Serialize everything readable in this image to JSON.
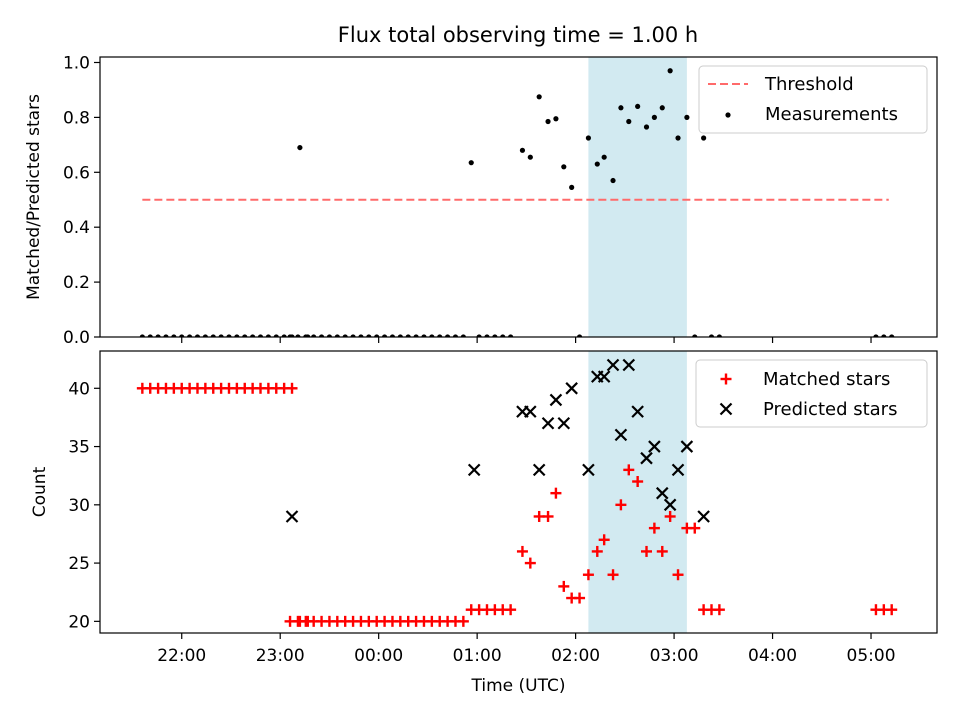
{
  "figure": {
    "title": "Flux total observing time = 1.00 h"
  },
  "chart_data": [
    {
      "type": "scatter",
      "title": "Flux total observing time = 1.00 h",
      "ylabel": "Matched/Predicted stars",
      "xlabel": "",
      "x_unit": "hours relative to 00:00 UTC",
      "xlim": [
        -2.83,
        5.67
      ],
      "ylim": [
        0,
        1.02
      ],
      "yticks": [
        "0.0",
        "0.2",
        "0.4",
        "0.6",
        "0.8",
        "1.0"
      ],
      "shaded_span": [
        2.13,
        3.13
      ],
      "shaded_color": "#add8e6",
      "legend": {
        "placement": "upper right",
        "entries": [
          "Threshold",
          "Measurements"
        ]
      },
      "threshold": {
        "name": "Threshold",
        "value": 0.5,
        "x_range": [
          -2.4,
          5.18
        ],
        "color": "#ff6a6a",
        "style": "dashed"
      },
      "measurements": {
        "name": "Measurements",
        "color": "#000000",
        "x": [
          -2.4,
          -2.32,
          -2.24,
          -2.16,
          -2.08,
          -2.0,
          -1.92,
          -1.84,
          -1.76,
          -1.68,
          -1.6,
          -1.52,
          -1.44,
          -1.36,
          -1.28,
          -1.2,
          -1.12,
          -1.04,
          -0.96,
          -0.88,
          -0.8,
          -0.72,
          -0.9,
          -0.82,
          -0.74,
          -0.66,
          -0.58,
          -0.5,
          -0.42,
          -0.34,
          -0.26,
          -0.18,
          -0.1,
          -0.02,
          0.06,
          0.14,
          0.22,
          0.3,
          0.38,
          0.46,
          0.54,
          0.62,
          0.7,
          0.78,
          0.86,
          0.94,
          1.02,
          1.1,
          1.18,
          1.26,
          1.34,
          1.46,
          1.54,
          1.63,
          1.72,
          1.8,
          1.88,
          1.96,
          2.04,
          2.13,
          2.22,
          2.29,
          2.38,
          2.46,
          2.54,
          2.63,
          2.72,
          2.8,
          2.88,
          2.96,
          3.04,
          3.13,
          3.21,
          3.3,
          3.38,
          3.46,
          5.05,
          5.13,
          5.21
        ],
        "y": [
          0,
          0,
          0,
          0,
          0,
          0,
          0,
          0,
          0,
          0,
          0,
          0,
          0,
          0,
          0,
          0,
          0,
          0,
          0,
          0,
          0.69,
          0,
          0,
          0,
          0,
          0,
          0,
          0,
          0,
          0,
          0,
          0,
          0,
          0,
          0,
          0,
          0,
          0,
          0,
          0,
          0,
          0,
          0,
          0,
          0,
          0.635,
          0,
          0,
          0,
          0,
          0,
          0.68,
          0.655,
          0.875,
          0.785,
          0.795,
          0.62,
          0.545,
          0,
          0.725,
          0.63,
          0.655,
          0.57,
          0.835,
          0.785,
          0.84,
          0.765,
          0.8,
          0.835,
          0.97,
          0.725,
          0.8,
          0,
          0.725,
          0,
          0,
          0,
          0,
          0
        ]
      }
    },
    {
      "type": "scatter",
      "ylabel": "Count",
      "xlabel": "Time (UTC)",
      "x_unit": "hours relative to 00:00 UTC",
      "xlim": [
        -2.83,
        5.67
      ],
      "ylim": [
        19.0,
        43.2
      ],
      "yticks": [
        "20",
        "25",
        "30",
        "35",
        "40"
      ],
      "xticks": [
        "22:00",
        "23:00",
        "00:00",
        "01:00",
        "02:00",
        "03:00",
        "04:00",
        "05:00"
      ],
      "xtick_values": [
        -2,
        -1,
        0,
        1,
        2,
        3,
        4,
        5
      ],
      "shaded_span": [
        2.13,
        3.13
      ],
      "shaded_color": "#add8e6",
      "legend": {
        "placement": "upper right",
        "entries": [
          "Matched stars",
          "Predicted stars"
        ]
      },
      "series": [
        {
          "name": "Matched stars",
          "marker": "plus",
          "color": "#ff0000",
          "x": [
            -2.4,
            -2.32,
            -2.24,
            -2.16,
            -2.08,
            -2.0,
            -1.92,
            -1.84,
            -1.76,
            -1.68,
            -1.6,
            -1.52,
            -1.44,
            -1.36,
            -1.28,
            -1.2,
            -1.12,
            -1.04,
            -0.96,
            -0.88,
            -0.8,
            -0.72,
            -0.9,
            -0.82,
            -0.74,
            -0.66,
            -0.58,
            -0.5,
            -0.42,
            -0.34,
            -0.26,
            -0.18,
            -0.1,
            -0.02,
            0.06,
            0.14,
            0.22,
            0.3,
            0.38,
            0.46,
            0.54,
            0.62,
            0.7,
            0.78,
            0.86,
            0.94,
            1.02,
            1.1,
            1.18,
            1.26,
            1.34,
            1.46,
            1.54,
            1.63,
            1.72,
            1.8,
            1.88,
            1.96,
            2.04,
            2.13,
            2.22,
            2.29,
            2.38,
            2.46,
            2.54,
            2.63,
            2.72,
            2.8,
            2.88,
            2.96,
            3.04,
            3.13,
            3.21,
            3.3,
            3.38,
            3.46,
            5.05,
            5.13,
            5.21
          ],
          "y": [
            40,
            40,
            40,
            40,
            40,
            40,
            40,
            40,
            40,
            40,
            40,
            40,
            40,
            40,
            40,
            40,
            40,
            40,
            40,
            40,
            20,
            20,
            20,
            20,
            20,
            20,
            20,
            20,
            20,
            20,
            20,
            20,
            20,
            20,
            20,
            20,
            20,
            20,
            20,
            20,
            20,
            20,
            20,
            20,
            20,
            21,
            21,
            21,
            21,
            21,
            21,
            26,
            25,
            29,
            29,
            31,
            23,
            22,
            22,
            24,
            26,
            27,
            24,
            30,
            33,
            32,
            26,
            28,
            26,
            29,
            24,
            28,
            28,
            21,
            21,
            21,
            21,
            21,
            21
          ]
        },
        {
          "name": "Predicted stars",
          "marker": "x",
          "color": "#000000",
          "x": [
            -0.88,
            0.97,
            1.46,
            1.54,
            1.63,
            1.72,
            1.8,
            1.88,
            1.96,
            2.13,
            2.22,
            2.29,
            2.38,
            2.46,
            2.54,
            2.63,
            2.72,
            2.8,
            2.88,
            2.96,
            3.04,
            3.13,
            3.3
          ],
          "y": [
            29,
            33,
            38,
            38,
            33,
            37,
            39,
            37,
            40,
            33,
            41,
            41,
            42,
            36,
            42,
            38,
            34,
            35,
            31,
            30,
            33,
            35,
            29
          ]
        }
      ]
    }
  ]
}
